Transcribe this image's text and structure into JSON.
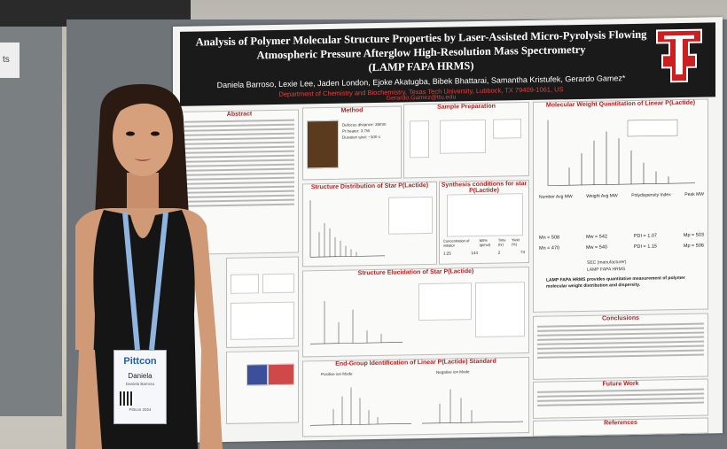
{
  "scene": {
    "side_card_text": "ts",
    "colors": {
      "banner": "#1a1a1a",
      "accent_red": "#b32020",
      "board": "#6f7478"
    }
  },
  "poster": {
    "title_line1": "Analysis of Polymer Molecular Structure Properties by Laser-Assisted Micro-Pyrolysis Flowing",
    "title_line2": "Atmospheric Pressure Afterglow High-Resolution Mass Spectrometry",
    "title_line3": "(LAMP FAPA HRMS)",
    "authors": "Daniela Barroso, Lexie Lee, Jaden London, Ejoke Akatugba, Bibek Bhattarai, Samantha Kristufek, Gerardo Gamez*",
    "affiliation": "Department of Chemistry and Biochemistry, Texas Tech University, Lubbock, TX 79409-1061, US",
    "email": "Gerardo.Gamez@ttu.edu",
    "sections": {
      "abstract": "Abstract",
      "method": "Method",
      "sample_prep": "Sample Preparation",
      "mw_quant": "Molecular Weight Quantitation of Linear P(Lactide)",
      "star_dist": "Structure Distribution of Star P(Lactide)",
      "synthesis": "Synthesis conditions for star P(Lactide)",
      "star_elucid": "Structure Elucidation of Star P(Lactide)",
      "end_group": "End-Group Identification of Linear P(Lactide) Standard",
      "conclusions": "Conclusions",
      "future": "Future Work",
      "references": "References"
    },
    "method_bullets": [
      "Defocus distance: 38mm",
      "Pt heater: 3.7W",
      "Duration spot: ~100 s"
    ],
    "mw_labels": [
      "Number Avg MW",
      "Weight Avg MW",
      "Polydispersity Index",
      "Peak MW"
    ],
    "mw_values": {
      "row1": [
        "Mn = 508",
        "Mw = 542",
        "PDI = 1.07",
        "Mp = 503"
      ],
      "row2": [
        "Mn = 470",
        "Mw = 540",
        "PDI = 1.15",
        "Mp = 506"
      ]
    },
    "legend_items": [
      "SEC (manufacturer)",
      "LAMP FAPA HRMS"
    ],
    "mw_conclusion": "LAMP FAPA HRMS provides quantitative measurement of polymer molecular weight distribution and dispersity.",
    "table_headers": [
      "Concentration of initiator",
      "M/I% (g/mol)",
      "Time (hr)",
      "Yield (%)"
    ],
    "table_row": [
      "1:25",
      "144",
      "2",
      "74"
    ],
    "neg_label": "Negative ion Mode",
    "pos_label": "Positive ion Mode"
  },
  "badge": {
    "brand": "Pittcon",
    "name": "Daniela",
    "details": "Daniela Barroso",
    "event": "Pittcon 2024"
  }
}
